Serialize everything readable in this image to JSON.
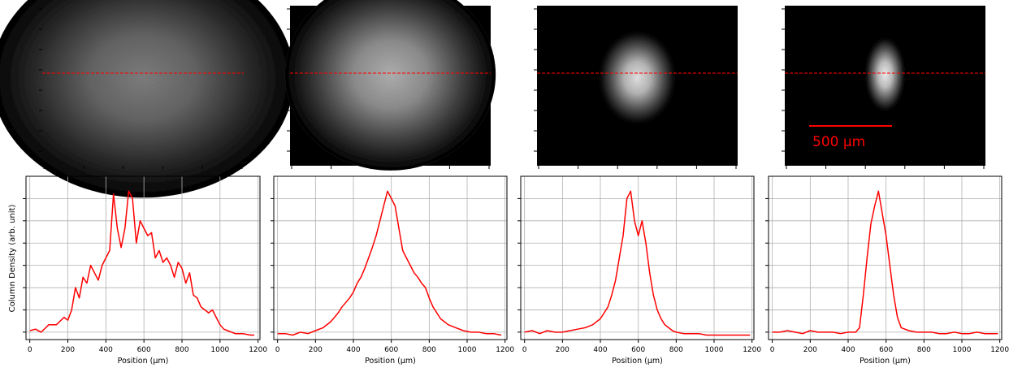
{
  "chart_data": [
    {
      "type": "line",
      "panel": 1,
      "xlabel": "Position (μm)",
      "ylabel": "Column Density (arb. unit)",
      "xlim": [
        -20,
        1210
      ],
      "ylim": [
        0,
        1.1
      ],
      "xticks": [
        0,
        200,
        400,
        600,
        800,
        1000,
        1200
      ],
      "xtick_labels": [
        "0",
        "200",
        "400",
        "600",
        "800",
        "1000",
        "1200"
      ],
      "yticks": [
        0.05,
        0.2,
        0.35,
        0.5,
        0.65,
        0.8,
        0.95
      ],
      "grid": true,
      "series": [
        {
          "color": "#ff0000",
          "x": [
            0,
            30,
            60,
            100,
            140,
            180,
            200,
            220,
            240,
            260,
            280,
            300,
            320,
            340,
            360,
            380,
            400,
            420,
            440,
            460,
            480,
            500,
            520,
            540,
            560,
            580,
            600,
            620,
            640,
            660,
            680,
            700,
            720,
            740,
            760,
            780,
            800,
            820,
            840,
            860,
            880,
            900,
            920,
            940,
            960,
            980,
            1000,
            1020,
            1040,
            1080,
            1120,
            1160,
            1180
          ],
          "y": [
            0.06,
            0.07,
            0.05,
            0.1,
            0.1,
            0.15,
            0.13,
            0.2,
            0.35,
            0.28,
            0.42,
            0.38,
            0.5,
            0.45,
            0.4,
            0.5,
            0.55,
            0.6,
            0.98,
            0.75,
            0.62,
            0.75,
            1.0,
            0.95,
            0.65,
            0.8,
            0.75,
            0.7,
            0.72,
            0.55,
            0.6,
            0.52,
            0.55,
            0.5,
            0.42,
            0.52,
            0.48,
            0.38,
            0.45,
            0.3,
            0.28,
            0.22,
            0.2,
            0.18,
            0.2,
            0.15,
            0.1,
            0.07,
            0.06,
            0.04,
            0.04,
            0.03,
            0.03
          ]
        }
      ]
    },
    {
      "type": "line",
      "panel": 2,
      "xlabel": "Position (μm)",
      "xlim": [
        -20,
        1210
      ],
      "ylim": [
        0,
        1.1
      ],
      "xticks": [
        0,
        200,
        400,
        600,
        800,
        1000,
        1200
      ],
      "xtick_labels": [
        "0",
        "200",
        "400",
        "600",
        "800",
        "1000",
        "1200"
      ],
      "yticks": [
        0.05,
        0.2,
        0.35,
        0.5,
        0.65,
        0.8,
        0.95
      ],
      "grid": true,
      "series": [
        {
          "color": "#ff0000",
          "x": [
            0,
            40,
            80,
            120,
            160,
            200,
            240,
            280,
            300,
            320,
            340,
            360,
            380,
            400,
            420,
            440,
            460,
            480,
            500,
            520,
            540,
            560,
            580,
            600,
            620,
            640,
            660,
            680,
            700,
            720,
            740,
            760,
            780,
            800,
            820,
            840,
            860,
            900,
            940,
            980,
            1020,
            1060,
            1100,
            1140,
            1180
          ],
          "y": [
            0.04,
            0.04,
            0.03,
            0.05,
            0.04,
            0.06,
            0.08,
            0.12,
            0.15,
            0.18,
            0.22,
            0.25,
            0.28,
            0.32,
            0.38,
            0.42,
            0.48,
            0.55,
            0.62,
            0.7,
            0.8,
            0.9,
            1.0,
            0.95,
            0.9,
            0.75,
            0.6,
            0.55,
            0.5,
            0.45,
            0.42,
            0.38,
            0.35,
            0.28,
            0.22,
            0.18,
            0.14,
            0.1,
            0.08,
            0.06,
            0.05,
            0.05,
            0.04,
            0.04,
            0.03
          ]
        }
      ]
    },
    {
      "type": "line",
      "panel": 3,
      "xlabel": "Position (μm)",
      "xlim": [
        -20,
        1210
      ],
      "ylim": [
        0,
        1.1
      ],
      "xticks": [
        0,
        200,
        400,
        600,
        800,
        1000,
        1200
      ],
      "xtick_labels": [
        "0",
        "200",
        "400",
        "600",
        "800",
        "1000",
        "1200"
      ],
      "yticks": [
        0.05,
        0.2,
        0.35,
        0.5,
        0.65,
        0.8,
        0.95
      ],
      "grid": true,
      "series": [
        {
          "color": "#ff0000",
          "x": [
            0,
            40,
            80,
            120,
            160,
            200,
            240,
            280,
            320,
            360,
            400,
            420,
            440,
            460,
            480,
            500,
            520,
            540,
            560,
            580,
            600,
            620,
            640,
            660,
            680,
            700,
            720,
            740,
            760,
            780,
            800,
            840,
            880,
            920,
            960,
            1000,
            1040,
            1080,
            1120,
            1160,
            1190
          ],
          "y": [
            0.05,
            0.06,
            0.04,
            0.06,
            0.05,
            0.05,
            0.06,
            0.07,
            0.08,
            0.1,
            0.14,
            0.18,
            0.22,
            0.3,
            0.4,
            0.55,
            0.7,
            0.95,
            1.0,
            0.8,
            0.7,
            0.8,
            0.65,
            0.45,
            0.3,
            0.2,
            0.14,
            0.1,
            0.08,
            0.06,
            0.05,
            0.04,
            0.04,
            0.04,
            0.03,
            0.03,
            0.03,
            0.03,
            0.03,
            0.03,
            0.03
          ]
        }
      ]
    },
    {
      "type": "line",
      "panel": 4,
      "xlabel": "Position (μm)",
      "xlim": [
        -20,
        1210
      ],
      "ylim": [
        0,
        1.1
      ],
      "xticks": [
        0,
        200,
        400,
        600,
        800,
        1000,
        1200
      ],
      "xtick_labels": [
        "0",
        "200",
        "400",
        "600",
        "800",
        "1000",
        "1200"
      ],
      "yticks": [
        0.05,
        0.2,
        0.35,
        0.5,
        0.65,
        0.8,
        0.95
      ],
      "grid": true,
      "series": [
        {
          "color": "#ff0000",
          "x": [
            0,
            40,
            80,
            120,
            160,
            200,
            240,
            280,
            320,
            360,
            400,
            440,
            460,
            480,
            500,
            520,
            540,
            560,
            580,
            600,
            620,
            640,
            660,
            680,
            720,
            760,
            800,
            840,
            880,
            920,
            960,
            1000,
            1040,
            1080,
            1120,
            1160,
            1190
          ],
          "y": [
            0.05,
            0.05,
            0.06,
            0.05,
            0.04,
            0.06,
            0.05,
            0.05,
            0.05,
            0.04,
            0.05,
            0.05,
            0.08,
            0.3,
            0.55,
            0.78,
            0.9,
            1.0,
            0.85,
            0.7,
            0.5,
            0.3,
            0.15,
            0.08,
            0.06,
            0.05,
            0.05,
            0.05,
            0.04,
            0.04,
            0.05,
            0.04,
            0.04,
            0.05,
            0.04,
            0.04,
            0.04
          ]
        }
      ]
    }
  ],
  "images": [
    {
      "panel": 1,
      "cloud_width_fraction": 1.0,
      "cloud_height_fraction": 1.0,
      "brightness": 0.5
    },
    {
      "panel": 2,
      "cloud_width_fraction": 0.7,
      "cloud_height_fraction": 0.8,
      "brightness": 0.7
    },
    {
      "panel": 3,
      "cloud_width_fraction": 0.25,
      "cloud_height_fraction": 0.38,
      "brightness": 0.9
    },
    {
      "panel": 4,
      "cloud_width_fraction": 0.13,
      "cloud_height_fraction": 0.3,
      "brightness": 0.95
    }
  ],
  "scale_bar": {
    "label": "500 μm",
    "color": "#ff0000"
  },
  "colors": {
    "line": "#ff0000",
    "grid": "#b0b0b0",
    "axis": "#000000",
    "image_bg": "#000000"
  }
}
